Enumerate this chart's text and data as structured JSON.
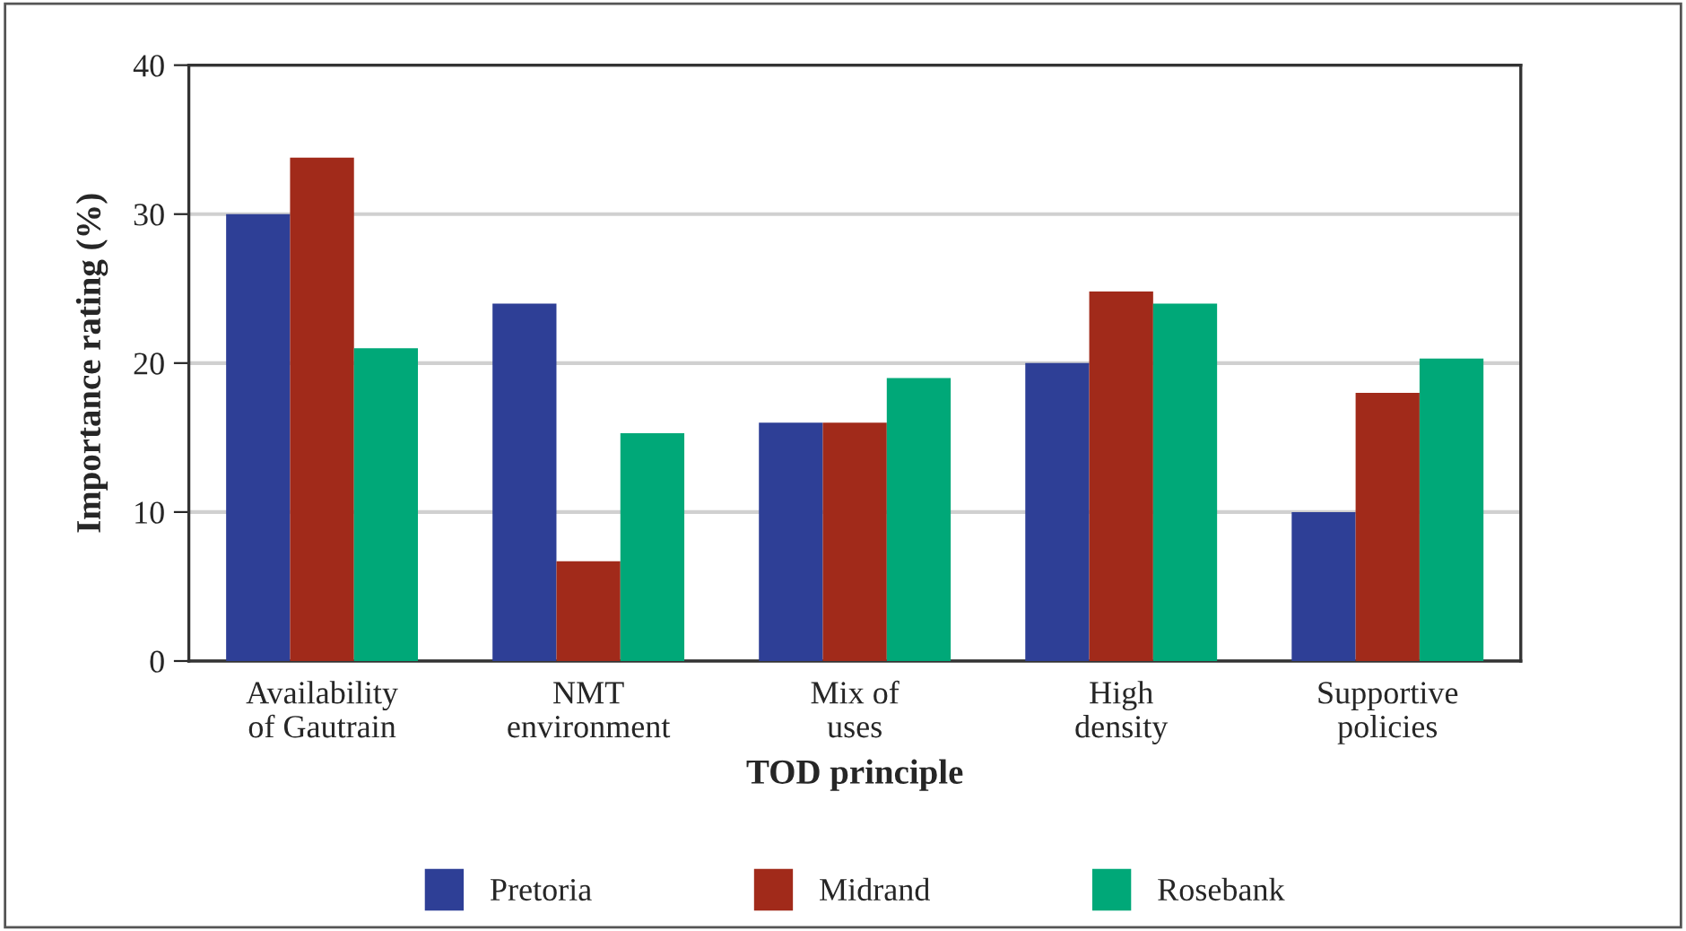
{
  "chart_data": {
    "type": "bar",
    "xlabel": "TOD principle",
    "ylabel": "Importance rating (%)",
    "categories": [
      "Availability\nof Gautrain",
      "NMT\nenvironment",
      "Mix of\nuses",
      "High\ndensity",
      "Supportive\npolicies"
    ],
    "series": [
      {
        "name": "Pretoria",
        "color": "#2e3f96",
        "values": [
          30,
          24,
          16,
          20,
          10
        ]
      },
      {
        "name": "Midrand",
        "color": "#a12a1a",
        "values": [
          33.8,
          6.7,
          16,
          24.8,
          18
        ]
      },
      {
        "name": "Rosebank",
        "color": "#00a878",
        "values": [
          21,
          15.3,
          19,
          24,
          20.3
        ]
      }
    ],
    "ylim": [
      0,
      40
    ],
    "yticks": [
      0,
      10,
      20,
      30,
      40
    ],
    "grid": "y",
    "legend": "bottom"
  }
}
